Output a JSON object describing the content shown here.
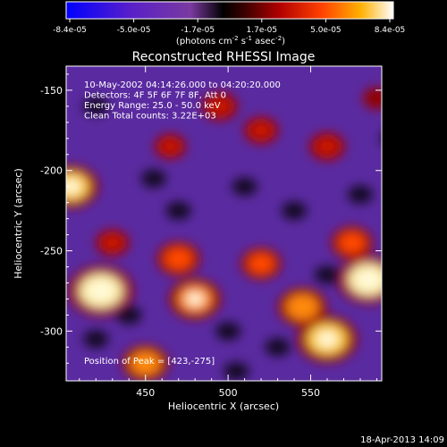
{
  "chart_data": {
    "type": "heatmap",
    "title": "Reconstructed RHESSI Image",
    "xlabel": "Heliocentric X (arcsec)",
    "ylabel": "Heliocentric Y (arcsec)",
    "xlim": [
      402,
      593
    ],
    "ylim": [
      -331,
      -135
    ],
    "x_ticks": [
      450,
      500,
      550
    ],
    "y_ticks": [
      -150,
      -200,
      -250,
      -300
    ],
    "colorbar": {
      "ticks": [
        "-8.4e-05",
        "-5.0e-05",
        "-1.7e-05",
        "1.7e-05",
        "5.0e-05",
        "8.4e-05"
      ],
      "min": -8.4e-05,
      "max": 8.4e-05,
      "unit_label": "(photons cm",
      "unit_sup1": "-2",
      "unit_mid": " s",
      "unit_sup2": "-1",
      "unit_mid2": " asec",
      "unit_sup3": "-2",
      "unit_end": ")"
    },
    "annotations": [
      "10-May-2002 04:14:26.000 to 04:20:20.000",
      "Detectors: 4F 5F 6F 7F 8F, Att 0",
      "Energy Range: 25.0 - 50.0 keV",
      "Clean    Total counts: 3.22E+03"
    ],
    "peak_label": "Position of Peak = [423,-275]",
    "peak": [
      423,
      -275
    ],
    "bright_sources": [
      {
        "x": 423,
        "y": -275,
        "value": 8.4e-05
      },
      {
        "x": 405,
        "y": -210,
        "value": 6.5e-05
      },
      {
        "x": 450,
        "y": -320,
        "value": 5e-05
      },
      {
        "x": 560,
        "y": -305,
        "value": 7.5e-05
      },
      {
        "x": 585,
        "y": -268,
        "value": 7.8e-05
      },
      {
        "x": 545,
        "y": -285,
        "value": 5.5e-05
      },
      {
        "x": 480,
        "y": -280,
        "value": 6e-05
      },
      {
        "x": 470,
        "y": -255,
        "value": 4.5e-05
      },
      {
        "x": 520,
        "y": -258,
        "value": 4e-05
      },
      {
        "x": 575,
        "y": -245,
        "value": 4.2e-05
      },
      {
        "x": 495,
        "y": -160,
        "value": 3.2e-05
      },
      {
        "x": 520,
        "y": -175,
        "value": 3e-05
      },
      {
        "x": 560,
        "y": -185,
        "value": 3.2e-05
      },
      {
        "x": 465,
        "y": -185,
        "value": 2.5e-05
      },
      {
        "x": 430,
        "y": -245,
        "value": 2.8e-05
      },
      {
        "x": 590,
        "y": -155,
        "value": 1.8e-05
      }
    ]
  },
  "footer": {
    "timestamp": "18-Apr-2013 14:09"
  }
}
